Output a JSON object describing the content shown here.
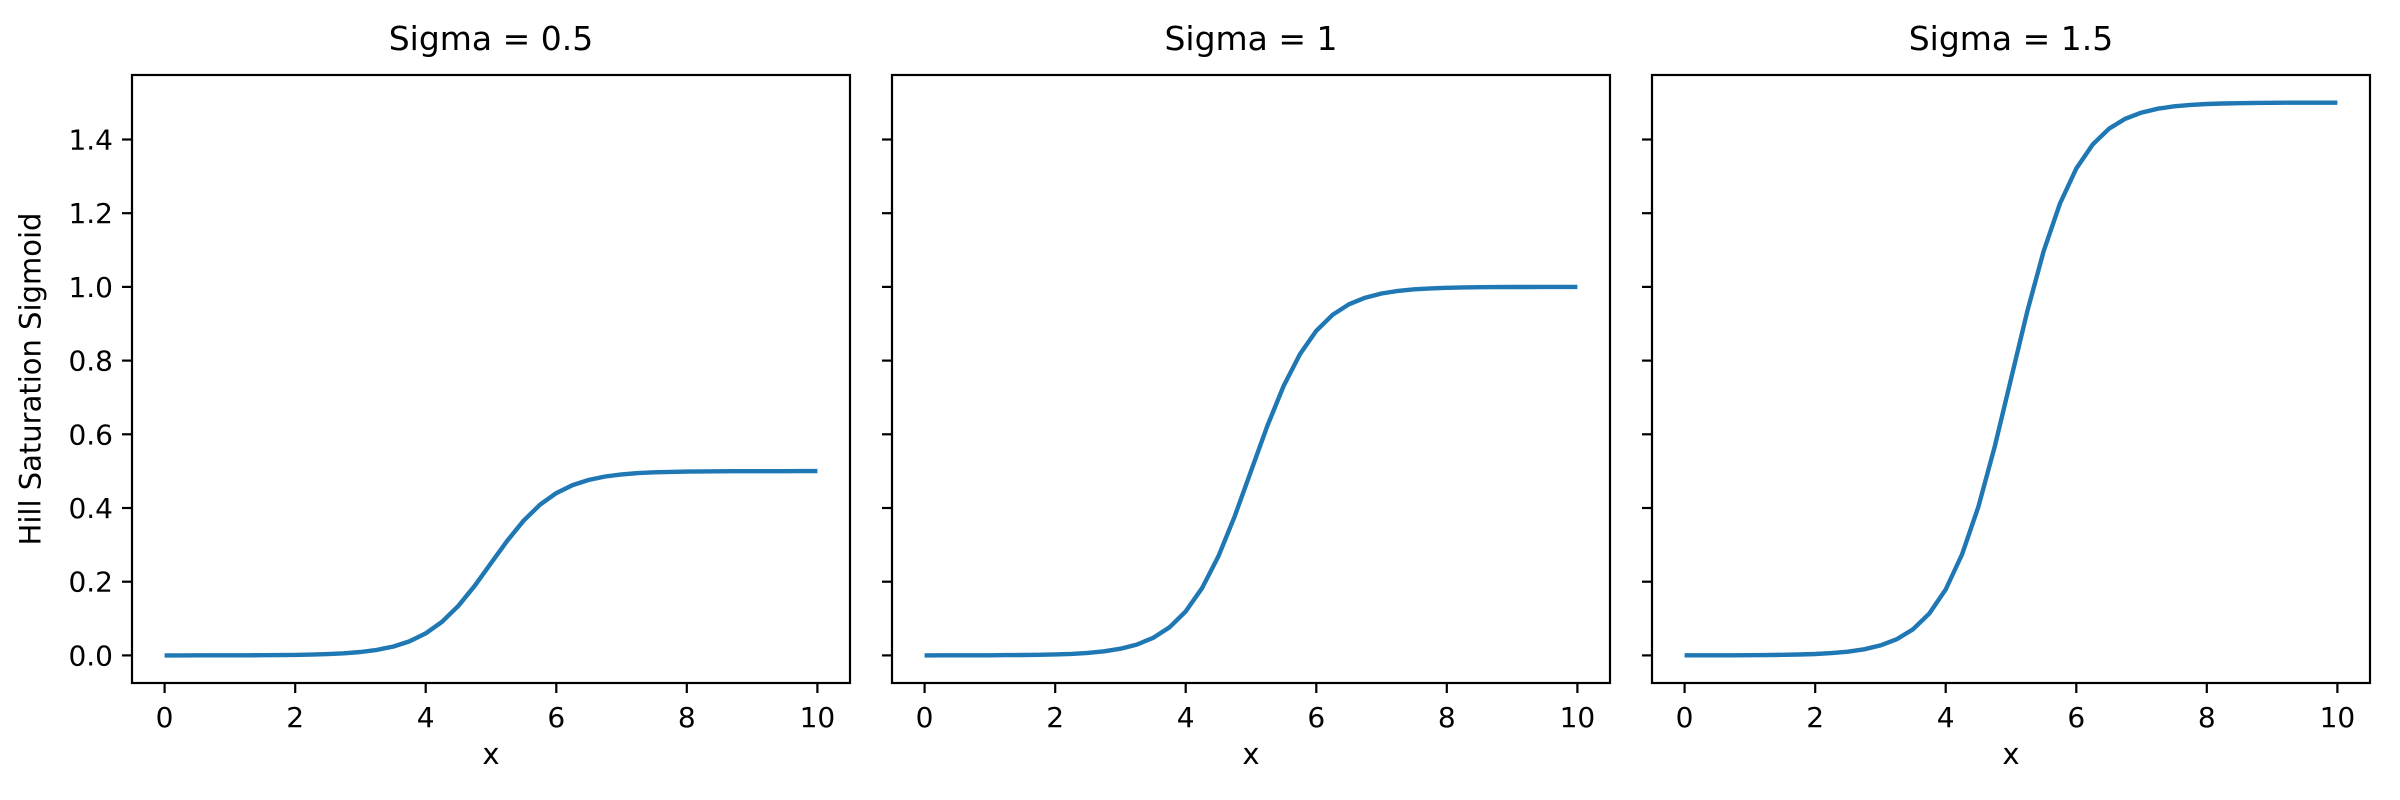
{
  "figure": {
    "background": "#ffffff",
    "text_color": "#000000",
    "spine_color": "#000000",
    "ylabel": "Hill Saturation Sigmoid",
    "xlabel": "x"
  },
  "chart_data": [
    {
      "type": "line",
      "title": "Sigma = 0.5",
      "sigma": 0.5,
      "xlabel": "x",
      "ylabel": "Hill Saturation Sigmoid",
      "line_color": "#1f77b4",
      "grid": false,
      "legend": null,
      "xlim": [
        -0.5,
        10.5
      ],
      "ylim": [
        -0.075,
        1.575
      ],
      "xticks": [
        0,
        2,
        4,
        6,
        8,
        10
      ],
      "xtick_labels": [
        "0",
        "2",
        "4",
        "6",
        "8",
        "10"
      ],
      "yticks": [
        0.0,
        0.2,
        0.4,
        0.6,
        0.8,
        1.0,
        1.2,
        1.4
      ],
      "ytick_labels": [
        "0.0",
        "0.2",
        "0.4",
        "0.6",
        "0.8",
        "1.0",
        "1.2",
        "1.4"
      ],
      "show_ytick_labels": true,
      "x": [
        0,
        0.25,
        0.5,
        0.75,
        1,
        1.25,
        1.5,
        1.75,
        2,
        2.25,
        2.5,
        2.75,
        3,
        3.25,
        3.5,
        3.75,
        4,
        4.25,
        4.5,
        4.75,
        5,
        5.25,
        5.5,
        5.75,
        6,
        6.25,
        6.5,
        6.75,
        7,
        7.25,
        7.5,
        7.75,
        8,
        8.25,
        8.5,
        8.75,
        9,
        9.25,
        9.5,
        9.75,
        10
      ],
      "y": [
        0.0,
        0.0,
        0.0001,
        0.0001,
        0.0002,
        0.0003,
        0.0005,
        0.0008,
        0.0012,
        0.002,
        0.0033,
        0.0055,
        0.009,
        0.0147,
        0.0237,
        0.0379,
        0.0596,
        0.0912,
        0.1345,
        0.1888,
        0.25,
        0.3112,
        0.3655,
        0.4088,
        0.4404,
        0.4621,
        0.4763,
        0.4853,
        0.491,
        0.4945,
        0.4967,
        0.498,
        0.4988,
        0.4992,
        0.4995,
        0.4997,
        0.4998,
        0.4999,
        0.4999,
        0.5,
        0.5
      ]
    },
    {
      "type": "line",
      "title": "Sigma = 1",
      "sigma": 1,
      "xlabel": "x",
      "ylabel": "",
      "line_color": "#1f77b4",
      "grid": false,
      "legend": null,
      "xlim": [
        -0.5,
        10.5
      ],
      "ylim": [
        -0.075,
        1.575
      ],
      "xticks": [
        0,
        2,
        4,
        6,
        8,
        10
      ],
      "xtick_labels": [
        "0",
        "2",
        "4",
        "6",
        "8",
        "10"
      ],
      "yticks": [
        0.0,
        0.2,
        0.4,
        0.6,
        0.8,
        1.0,
        1.2,
        1.4
      ],
      "ytick_labels": [],
      "show_ytick_labels": false,
      "x": [
        0,
        0.25,
        0.5,
        0.75,
        1,
        1.25,
        1.5,
        1.75,
        2,
        2.25,
        2.5,
        2.75,
        3,
        3.25,
        3.5,
        3.75,
        4,
        4.25,
        4.5,
        4.75,
        5,
        5.25,
        5.5,
        5.75,
        6,
        6.25,
        6.5,
        6.75,
        7,
        7.25,
        7.5,
        7.75,
        8,
        8.25,
        8.5,
        8.75,
        9,
        9.25,
        9.5,
        9.75,
        10
      ],
      "y": [
        0.0,
        0.0001,
        0.0001,
        0.0002,
        0.0003,
        0.0006,
        0.0009,
        0.0015,
        0.0025,
        0.0041,
        0.0067,
        0.011,
        0.018,
        0.0293,
        0.0474,
        0.0759,
        0.1192,
        0.1824,
        0.2689,
        0.3775,
        0.5,
        0.6225,
        0.7311,
        0.8176,
        0.8808,
        0.9241,
        0.9526,
        0.9707,
        0.982,
        0.989,
        0.9933,
        0.9959,
        0.9975,
        0.9985,
        0.9991,
        0.9994,
        0.9997,
        0.9998,
        0.9999,
        0.9999,
        1.0
      ]
    },
    {
      "type": "line",
      "title": "Sigma = 1.5",
      "sigma": 1.5,
      "xlabel": "x",
      "ylabel": "",
      "line_color": "#1f77b4",
      "grid": false,
      "legend": null,
      "xlim": [
        -0.5,
        10.5
      ],
      "ylim": [
        -0.075,
        1.575
      ],
      "xticks": [
        0,
        2,
        4,
        6,
        8,
        10
      ],
      "xtick_labels": [
        "0",
        "2",
        "4",
        "6",
        "8",
        "10"
      ],
      "yticks": [
        0.0,
        0.2,
        0.4,
        0.6,
        0.8,
        1.0,
        1.2,
        1.4
      ],
      "ytick_labels": [],
      "show_ytick_labels": false,
      "x": [
        0,
        0.25,
        0.5,
        0.75,
        1,
        1.25,
        1.5,
        1.75,
        2,
        2.25,
        2.5,
        2.75,
        3,
        3.25,
        3.5,
        3.75,
        4,
        4.25,
        4.5,
        4.75,
        5,
        5.25,
        5.5,
        5.75,
        6,
        6.25,
        6.5,
        6.75,
        7,
        7.25,
        7.5,
        7.75,
        8,
        8.25,
        8.5,
        8.75,
        9,
        9.25,
        9.5,
        9.75,
        10
      ],
      "y": [
        0.0001,
        0.0001,
        0.0002,
        0.0003,
        0.0005,
        0.0008,
        0.0014,
        0.0023,
        0.0037,
        0.0061,
        0.01,
        0.0165,
        0.027,
        0.044,
        0.0711,
        0.1138,
        0.1788,
        0.2736,
        0.4034,
        0.5663,
        0.75,
        0.9337,
        1.0966,
        1.2264,
        1.3212,
        1.3862,
        1.4289,
        1.456,
        1.473,
        1.4835,
        1.49,
        1.4939,
        1.4963,
        1.4977,
        1.4986,
        1.4992,
        1.4995,
        1.4997,
        1.4998,
        1.4999,
        1.4999
      ]
    }
  ]
}
